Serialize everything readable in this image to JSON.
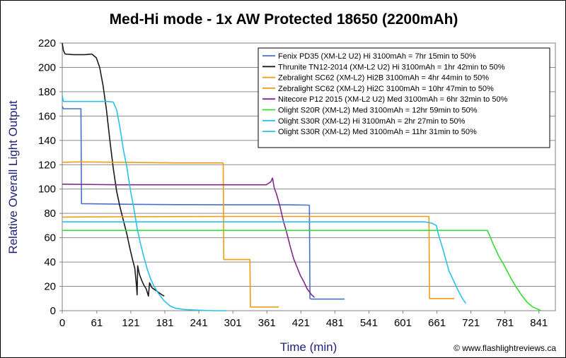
{
  "chart_data": {
    "type": "line",
    "title": "Med-Hi mode - 1x AW Protected 18650 (2200mAh)",
    "xlabel": "Time (min)",
    "ylabel": "Relative Overall Light Output",
    "xlim": [
      0,
      870
    ],
    "ylim": [
      0,
      220
    ],
    "x_ticks": [
      "0",
      "61",
      "121",
      "181",
      "241",
      "301",
      "361",
      "421",
      "481",
      "541",
      "601",
      "661",
      "721",
      "781",
      "841"
    ],
    "x_tick_values": [
      0,
      61,
      121,
      181,
      241,
      301,
      361,
      421,
      481,
      541,
      601,
      661,
      721,
      781,
      841
    ],
    "y_ticks": [
      "0",
      "20",
      "40",
      "60",
      "80",
      "100",
      "120",
      "140",
      "160",
      "180",
      "200",
      "220"
    ],
    "y_tick_values": [
      0,
      20,
      40,
      60,
      80,
      100,
      120,
      140,
      160,
      180,
      200,
      220
    ],
    "grid": true,
    "legend_position": "top-right",
    "credit": "© www.flashlightreviews.ca",
    "series": [
      {
        "name": "Fenix PD35 (XM-L2 U2) Hi 3100mAh = 7hr 15min to 50%",
        "color": "#4a6fc9",
        "points": [
          [
            0,
            168
          ],
          [
            2,
            166
          ],
          [
            32,
            166
          ],
          [
            33,
            166
          ],
          [
            34,
            88
          ],
          [
            60,
            87.8
          ],
          [
            120,
            87.5
          ],
          [
            200,
            87.2
          ],
          [
            300,
            87
          ],
          [
            400,
            87
          ],
          [
            435,
            86.8
          ],
          [
            436,
            86.5
          ],
          [
            437,
            10
          ],
          [
            440,
            9.5
          ],
          [
            498,
            9.5
          ]
        ]
      },
      {
        "name": "Thrunite TN12-2014 (XM-L2 U2) Hi 3100mAh = 1hr 42min to 50%",
        "color": "#1a1a1a",
        "points": [
          [
            0,
            220
          ],
          [
            2,
            214
          ],
          [
            5,
            211
          ],
          [
            20,
            210.5
          ],
          [
            40,
            210.5
          ],
          [
            52,
            211
          ],
          [
            60,
            208
          ],
          [
            66,
            200
          ],
          [
            72,
            185
          ],
          [
            78,
            165
          ],
          [
            84,
            140
          ],
          [
            90,
            117
          ],
          [
            96,
            98
          ],
          [
            102,
            85
          ],
          [
            108,
            74
          ],
          [
            114,
            63
          ],
          [
            120,
            50
          ],
          [
            124,
            42
          ],
          [
            128,
            35
          ],
          [
            131,
            20
          ],
          [
            132,
            13
          ],
          [
            133,
            37
          ],
          [
            136,
            30
          ],
          [
            140,
            25
          ],
          [
            144,
            21
          ],
          [
            148,
            18
          ],
          [
            152,
            12
          ],
          [
            154,
            23
          ],
          [
            158,
            19
          ],
          [
            164,
            17
          ],
          [
            170,
            15
          ],
          [
            176,
            13
          ],
          [
            180,
            12
          ]
        ]
      },
      {
        "name": "Zebralight SC62 (XM-L2) Hi2B 3100mAh = 4hr 44min to 50%",
        "color": "#f39c12",
        "points": [
          [
            0,
            122
          ],
          [
            30,
            122.3
          ],
          [
            100,
            122
          ],
          [
            200,
            121.5
          ],
          [
            283,
            121.5
          ],
          [
            284,
            121
          ],
          [
            285,
            42
          ],
          [
            310,
            42
          ],
          [
            331,
            42
          ],
          [
            332,
            3
          ],
          [
            360,
            3
          ],
          [
            382,
            3
          ]
        ]
      },
      {
        "name": "Zebralight SC62 (XM-L2) Hi2C 3100mAh = 10hr 47min to 50%",
        "color": "#f39c12",
        "points": [
          [
            0,
            77
          ],
          [
            100,
            77.2
          ],
          [
            300,
            77.5
          ],
          [
            450,
            77.5
          ],
          [
            600,
            77.5
          ],
          [
            646,
            77.5
          ],
          [
            647,
            77
          ],
          [
            648,
            10
          ],
          [
            680,
            10
          ],
          [
            692,
            10
          ]
        ]
      },
      {
        "name": "Nitecore P12 2015 (XM-L2 U2) Med 3100mAh = 6hr 32min to 50%",
        "color": "#7d2a86",
        "points": [
          [
            0,
            104
          ],
          [
            100,
            103.5
          ],
          [
            200,
            103.5
          ],
          [
            300,
            103.5
          ],
          [
            360,
            103.5
          ],
          [
            368,
            106
          ],
          [
            371,
            109
          ],
          [
            374,
            101
          ],
          [
            378,
            96
          ],
          [
            384,
            86
          ],
          [
            390,
            74
          ],
          [
            396,
            64
          ],
          [
            402,
            53
          ],
          [
            408,
            43
          ],
          [
            414,
            36
          ],
          [
            420,
            29
          ],
          [
            426,
            24
          ],
          [
            432,
            18
          ],
          [
            440,
            13
          ],
          [
            445,
            11
          ]
        ]
      },
      {
        "name": "Olight S20R (XM-L2) Med 3100mAh = 12hr 59min to 50%",
        "color": "#33dd33",
        "points": [
          [
            0,
            66
          ],
          [
            100,
            66
          ],
          [
            300,
            66
          ],
          [
            500,
            66
          ],
          [
            700,
            66
          ],
          [
            750,
            66
          ],
          [
            752,
            64
          ],
          [
            760,
            55
          ],
          [
            770,
            45
          ],
          [
            780,
            37
          ],
          [
            790,
            28
          ],
          [
            800,
            20
          ],
          [
            810,
            13
          ],
          [
            820,
            7
          ],
          [
            830,
            3
          ],
          [
            845,
            0
          ]
        ]
      },
      {
        "name": "Olight S30R (XM-L2) Hi 3100mAh = 2hr 27min to 50%",
        "color": "#29c1eb",
        "points": [
          [
            0,
            177
          ],
          [
            2,
            172
          ],
          [
            5,
            172
          ],
          [
            30,
            172
          ],
          [
            60,
            172
          ],
          [
            80,
            172
          ],
          [
            90,
            171.5
          ],
          [
            96,
            165
          ],
          [
            102,
            150
          ],
          [
            108,
            132
          ],
          [
            114,
            118
          ],
          [
            120,
            100
          ],
          [
            126,
            85
          ],
          [
            132,
            68
          ],
          [
            138,
            55
          ],
          [
            144,
            44
          ],
          [
            150,
            34
          ],
          [
            156,
            26
          ],
          [
            162,
            20
          ],
          [
            170,
            14
          ],
          [
            180,
            8
          ],
          [
            190,
            4
          ],
          [
            200,
            2
          ],
          [
            215,
            1
          ],
          [
            240,
            0.4
          ],
          [
            270,
            0
          ],
          [
            290,
            0
          ]
        ]
      },
      {
        "name": "Olight S30R (XM-L2) Med 3100mAh = 11hr 31min to 50%",
        "color": "#29c1eb",
        "points": [
          [
            0,
            73
          ],
          [
            100,
            73
          ],
          [
            300,
            73
          ],
          [
            500,
            73
          ],
          [
            600,
            73
          ],
          [
            640,
            73
          ],
          [
            652,
            72
          ],
          [
            660,
            70
          ],
          [
            664,
            62
          ],
          [
            670,
            53
          ],
          [
            676,
            43
          ],
          [
            682,
            33
          ],
          [
            690,
            25
          ],
          [
            698,
            17
          ],
          [
            706,
            10
          ],
          [
            712,
            6
          ]
        ]
      }
    ]
  }
}
